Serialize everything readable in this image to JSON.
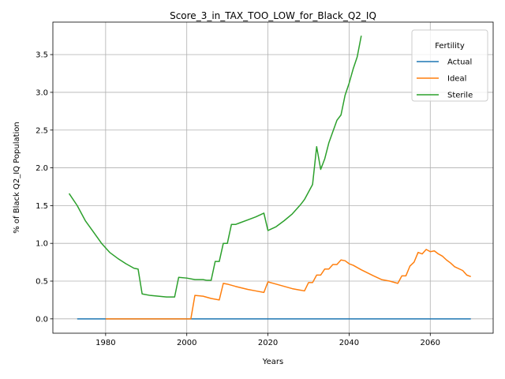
{
  "chart_data": {
    "type": "line",
    "title": "Score_3_in_TAX_TOO_LOW_for_Black_Q2_IQ",
    "xlabel": "Years",
    "ylabel": "% of Black Q2_IQ Population",
    "xlim": [
      1967,
      2075.5
    ],
    "ylim": [
      -0.19,
      3.93
    ],
    "xticks": [
      1980,
      2000,
      2020,
      2040,
      2060
    ],
    "yticks": [
      0.0,
      0.5,
      1.0,
      1.5,
      2.0,
      2.5,
      3.0,
      3.5
    ],
    "grid": true,
    "legend": {
      "title": "Fertility",
      "placement": "top-right"
    },
    "series": [
      {
        "name": "Actual",
        "color": "#1f77b4",
        "points": [
          [
            1973,
            0.0
          ],
          [
            2070,
            0.0
          ]
        ]
      },
      {
        "name": "Ideal",
        "color": "#ff7f0e",
        "points": [
          [
            1980,
            0.0
          ],
          [
            2001,
            0.0
          ],
          [
            2002,
            0.31
          ],
          [
            2004,
            0.3
          ],
          [
            2006,
            0.27
          ],
          [
            2008,
            0.25
          ],
          [
            2009,
            0.47
          ],
          [
            2010,
            0.46
          ],
          [
            2012,
            0.43
          ],
          [
            2015,
            0.39
          ],
          [
            2017,
            0.37
          ],
          [
            2019,
            0.35
          ],
          [
            2020,
            0.49
          ],
          [
            2022,
            0.46
          ],
          [
            2024,
            0.43
          ],
          [
            2026,
            0.4
          ],
          [
            2028,
            0.38
          ],
          [
            2029,
            0.37
          ],
          [
            2030,
            0.48
          ],
          [
            2031,
            0.48
          ],
          [
            2032,
            0.58
          ],
          [
            2033,
            0.58
          ],
          [
            2034,
            0.66
          ],
          [
            2035,
            0.66
          ],
          [
            2036,
            0.72
          ],
          [
            2037,
            0.72
          ],
          [
            2038,
            0.78
          ],
          [
            2039,
            0.77
          ],
          [
            2040,
            0.73
          ],
          [
            2041,
            0.71
          ],
          [
            2043,
            0.65
          ],
          [
            2046,
            0.57
          ],
          [
            2048,
            0.52
          ],
          [
            2050,
            0.5
          ],
          [
            2052,
            0.47
          ],
          [
            2053,
            0.57
          ],
          [
            2054,
            0.57
          ],
          [
            2055,
            0.7
          ],
          [
            2056,
            0.75
          ],
          [
            2057,
            0.88
          ],
          [
            2058,
            0.86
          ],
          [
            2059,
            0.92
          ],
          [
            2060,
            0.89
          ],
          [
            2061,
            0.9
          ],
          [
            2062,
            0.86
          ],
          [
            2063,
            0.83
          ],
          [
            2064,
            0.78
          ],
          [
            2065,
            0.74
          ],
          [
            2066,
            0.69
          ],
          [
            2068,
            0.64
          ],
          [
            2069,
            0.58
          ],
          [
            2070,
            0.56
          ]
        ]
      },
      {
        "name": "Sterile",
        "color": "#2ca02c",
        "points": [
          [
            1971,
            1.66
          ],
          [
            1973,
            1.5
          ],
          [
            1975,
            1.3
          ],
          [
            1977,
            1.15
          ],
          [
            1979,
            1.0
          ],
          [
            1981,
            0.88
          ],
          [
            1983,
            0.8
          ],
          [
            1985,
            0.73
          ],
          [
            1987,
            0.67
          ],
          [
            1988,
            0.66
          ],
          [
            1989,
            0.33
          ],
          [
            1991,
            0.31
          ],
          [
            1995,
            0.29
          ],
          [
            1997,
            0.29
          ],
          [
            1998,
            0.55
          ],
          [
            2000,
            0.54
          ],
          [
            2002,
            0.52
          ],
          [
            2004,
            0.52
          ],
          [
            2005,
            0.51
          ],
          [
            2006,
            0.51
          ],
          [
            2007,
            0.76
          ],
          [
            2008,
            0.76
          ],
          [
            2009,
            1.0
          ],
          [
            2010,
            1.0
          ],
          [
            2011,
            1.25
          ],
          [
            2012,
            1.25
          ],
          [
            2013,
            1.27
          ],
          [
            2015,
            1.31
          ],
          [
            2017,
            1.35
          ],
          [
            2019,
            1.4
          ],
          [
            2020,
            1.17
          ],
          [
            2022,
            1.22
          ],
          [
            2024,
            1.3
          ],
          [
            2026,
            1.39
          ],
          [
            2028,
            1.51
          ],
          [
            2029,
            1.58
          ],
          [
            2031,
            1.78
          ],
          [
            2032,
            2.28
          ],
          [
            2033,
            1.98
          ],
          [
            2034,
            2.12
          ],
          [
            2035,
            2.33
          ],
          [
            2036,
            2.48
          ],
          [
            2037,
            2.63
          ],
          [
            2038,
            2.7
          ],
          [
            2039,
            2.96
          ],
          [
            2040,
            3.12
          ],
          [
            2041,
            3.31
          ],
          [
            2042,
            3.47
          ],
          [
            2043,
            3.75
          ]
        ]
      }
    ]
  }
}
